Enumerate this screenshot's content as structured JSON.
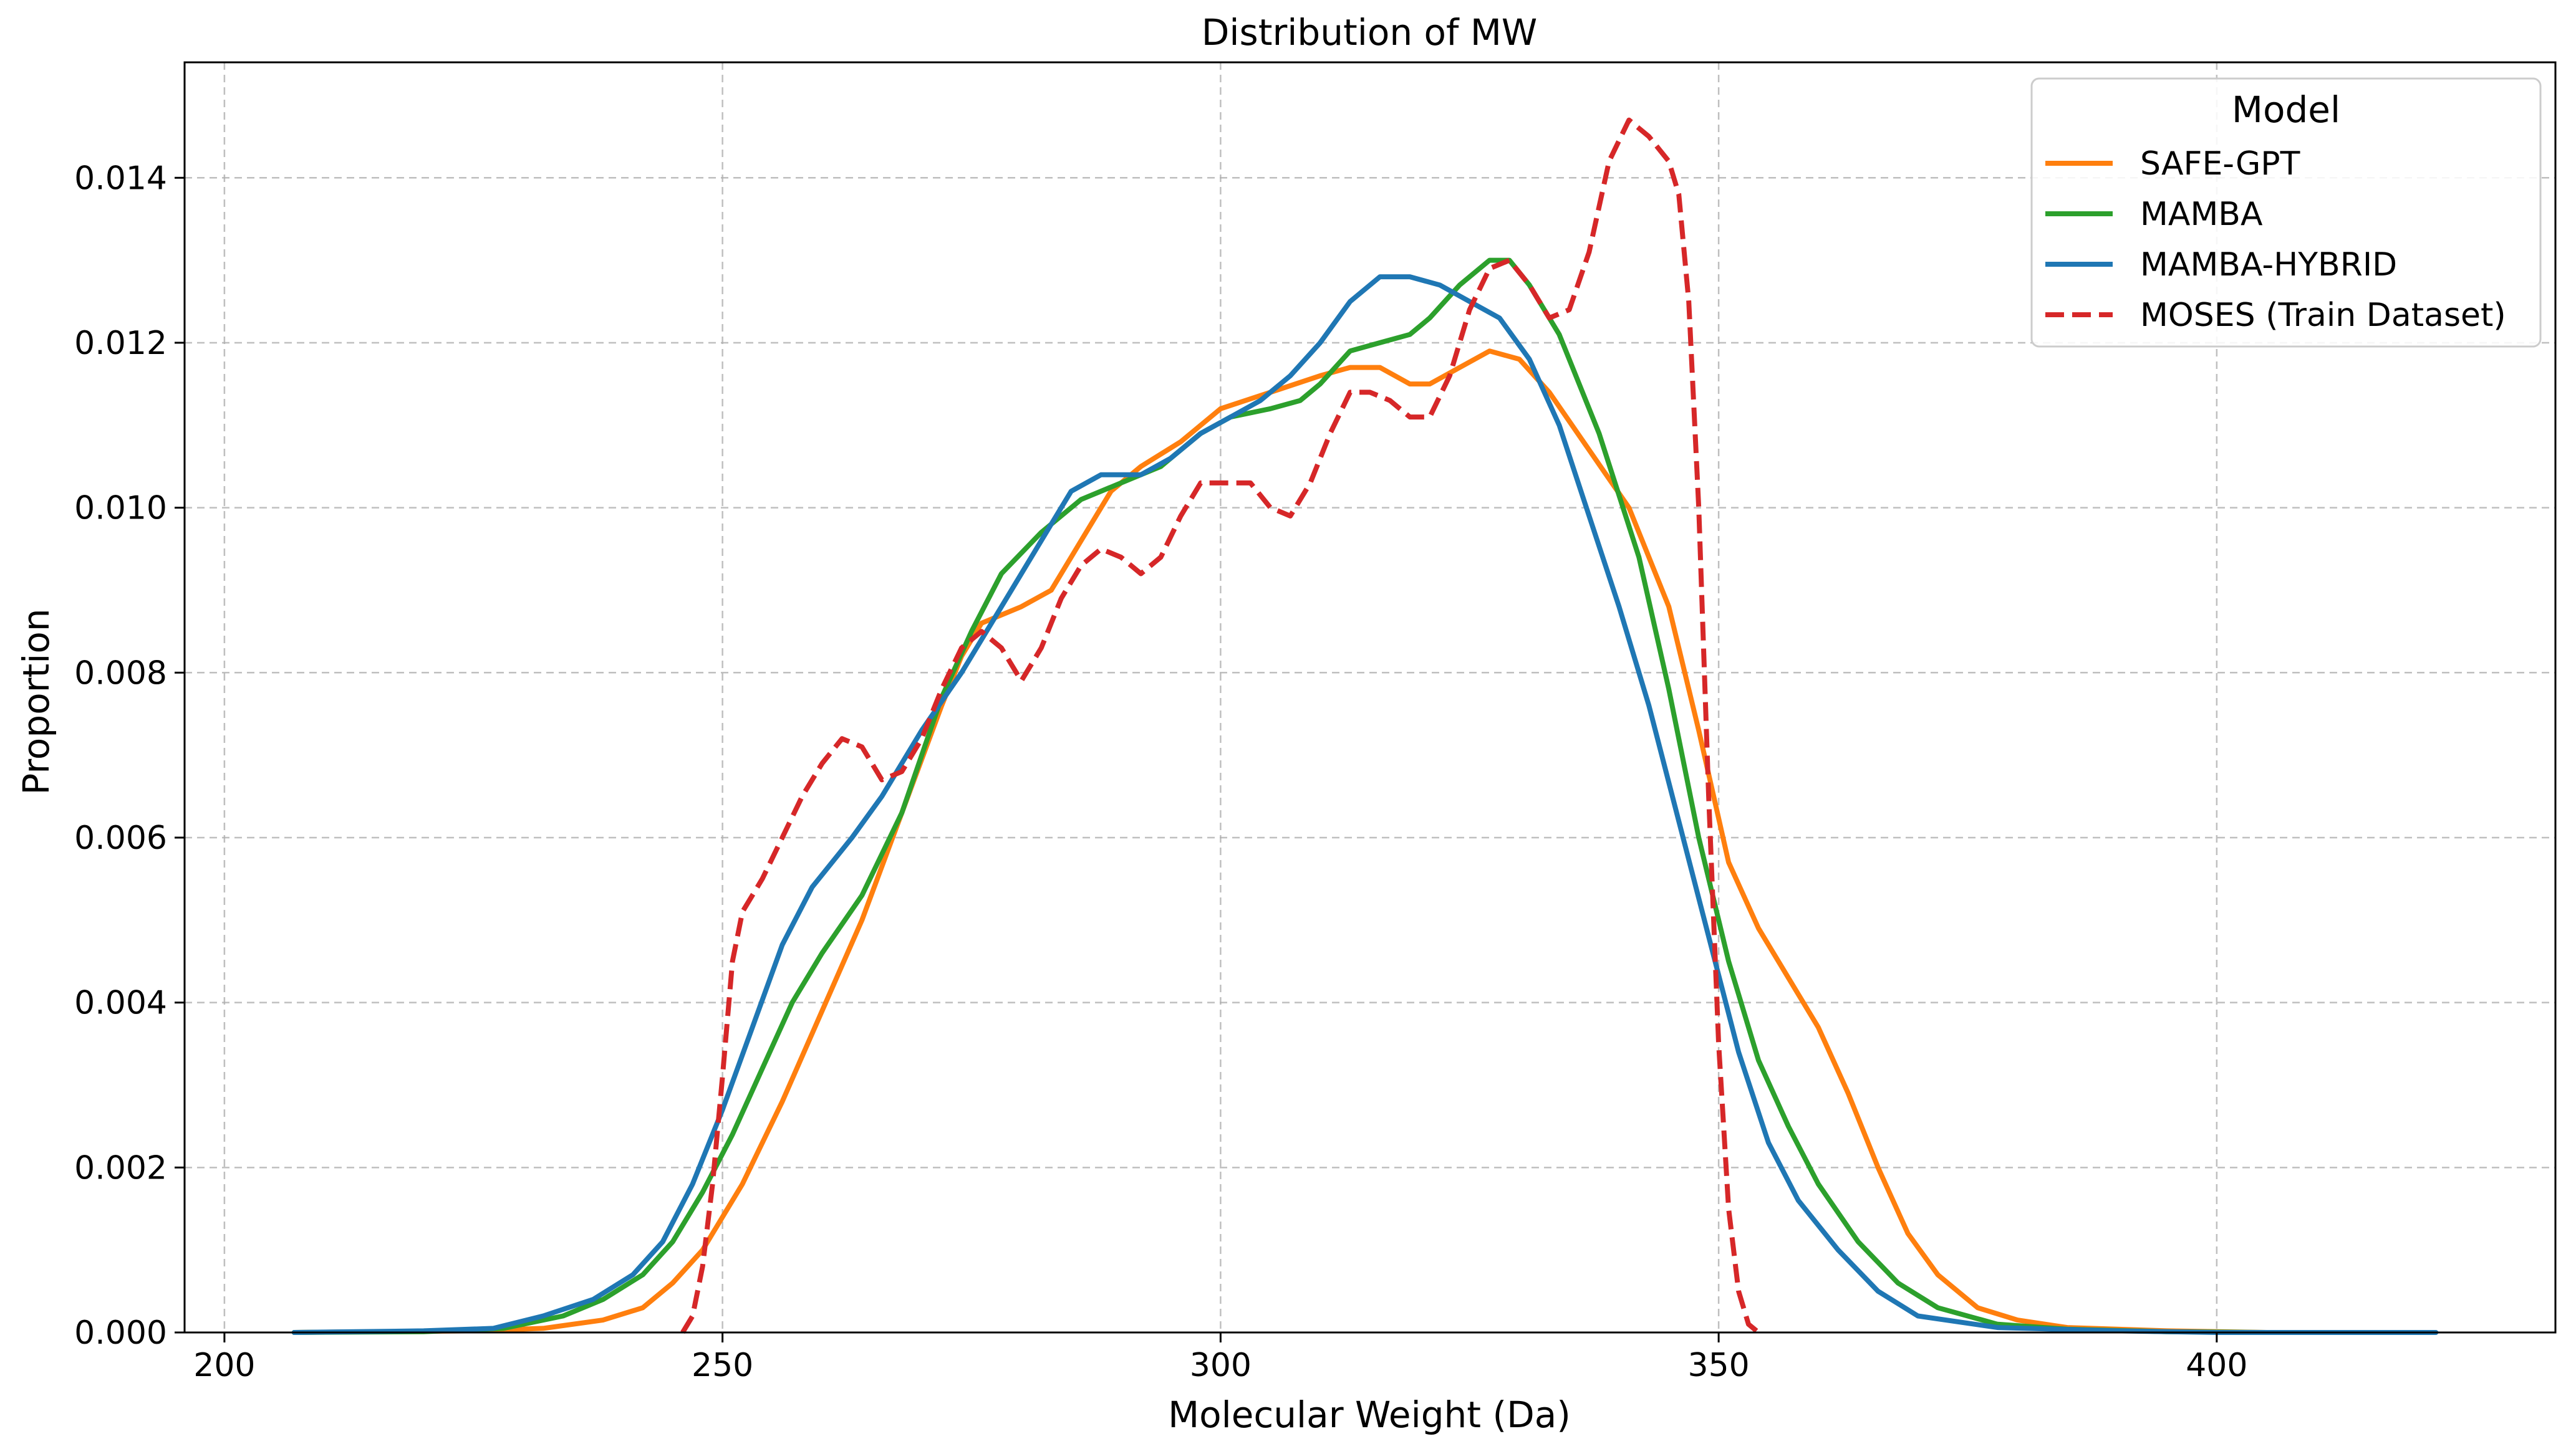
{
  "chart_data": {
    "type": "line",
    "title": "Distribution of MW",
    "xlabel": "Molecular Weight (Da)",
    "ylabel": "Proportion",
    "xlim": [
      196,
      434
    ],
    "ylim": [
      0,
      0.0154
    ],
    "xticks": [
      200,
      250,
      300,
      350,
      400
    ],
    "yticks": [
      0.0,
      0.002,
      0.004,
      0.006,
      0.008,
      0.01,
      0.012,
      0.014
    ],
    "xtick_labels": [
      "200",
      "250",
      "300",
      "350",
      "400"
    ],
    "ytick_labels": [
      "0.000",
      "0.002",
      "0.004",
      "0.006",
      "0.008",
      "0.010",
      "0.012",
      "0.014"
    ],
    "grid": true,
    "legend": {
      "title": "Model",
      "position": "top-right"
    },
    "series": [
      {
        "name": "SAFE-GPT",
        "color": "#ff7f0e",
        "dash": "solid",
        "points": [
          [
            207,
            0
          ],
          [
            225,
            2e-05
          ],
          [
            232,
            5e-05
          ],
          [
            238,
            0.00015
          ],
          [
            242,
            0.0003
          ],
          [
            245,
            0.0006
          ],
          [
            248,
            0.001
          ],
          [
            252,
            0.0018
          ],
          [
            256,
            0.0028
          ],
          [
            260,
            0.0039
          ],
          [
            264,
            0.005
          ],
          [
            268,
            0.0063
          ],
          [
            272,
            0.0076
          ],
          [
            274,
            0.0082
          ],
          [
            276,
            0.0086
          ],
          [
            280,
            0.0088
          ],
          [
            283,
            0.009
          ],
          [
            286,
            0.0096
          ],
          [
            289,
            0.0102
          ],
          [
            292,
            0.0105
          ],
          [
            296,
            0.0108
          ],
          [
            300,
            0.0112
          ],
          [
            305,
            0.0114
          ],
          [
            310,
            0.0116
          ],
          [
            313,
            0.0117
          ],
          [
            316,
            0.0117
          ],
          [
            319,
            0.0115
          ],
          [
            321,
            0.0115
          ],
          [
            324,
            0.0117
          ],
          [
            327,
            0.0119
          ],
          [
            330,
            0.0118
          ],
          [
            333,
            0.0114
          ],
          [
            337,
            0.0107
          ],
          [
            341,
            0.01
          ],
          [
            345,
            0.0088
          ],
          [
            348,
            0.0073
          ],
          [
            351,
            0.0057
          ],
          [
            354,
            0.0049
          ],
          [
            357,
            0.0043
          ],
          [
            360,
            0.0037
          ],
          [
            363,
            0.0029
          ],
          [
            366,
            0.002
          ],
          [
            369,
            0.0012
          ],
          [
            372,
            0.0007
          ],
          [
            376,
            0.0003
          ],
          [
            380,
            0.00015
          ],
          [
            385,
            6e-05
          ],
          [
            395,
            2e-05
          ],
          [
            405,
            0
          ]
        ]
      },
      {
        "name": "MAMBA",
        "color": "#2ca02c",
        "dash": "solid",
        "points": [
          [
            207,
            0
          ],
          [
            220,
            1e-05
          ],
          [
            228,
            5e-05
          ],
          [
            234,
            0.0002
          ],
          [
            238,
            0.0004
          ],
          [
            242,
            0.0007
          ],
          [
            245,
            0.0011
          ],
          [
            248,
            0.0017
          ],
          [
            251,
            0.0024
          ],
          [
            254,
            0.0032
          ],
          [
            257,
            0.004
          ],
          [
            260,
            0.0046
          ],
          [
            264,
            0.0053
          ],
          [
            268,
            0.0063
          ],
          [
            272,
            0.0077
          ],
          [
            275,
            0.0085
          ],
          [
            278,
            0.0092
          ],
          [
            282,
            0.0097
          ],
          [
            286,
            0.0101
          ],
          [
            290,
            0.0103
          ],
          [
            294,
            0.0105
          ],
          [
            298,
            0.0109
          ],
          [
            301,
            0.0111
          ],
          [
            305,
            0.0112
          ],
          [
            308,
            0.0113
          ],
          [
            310,
            0.0115
          ],
          [
            313,
            0.0119
          ],
          [
            316,
            0.012
          ],
          [
            319,
            0.0121
          ],
          [
            321,
            0.0123
          ],
          [
            324,
            0.0127
          ],
          [
            327,
            0.013
          ],
          [
            329,
            0.013
          ],
          [
            331,
            0.0127
          ],
          [
            334,
            0.0121
          ],
          [
            338,
            0.0109
          ],
          [
            342,
            0.0094
          ],
          [
            345,
            0.0078
          ],
          [
            348,
            0.006
          ],
          [
            351,
            0.0045
          ],
          [
            354,
            0.0033
          ],
          [
            357,
            0.0025
          ],
          [
            360,
            0.0018
          ],
          [
            364,
            0.0011
          ],
          [
            368,
            0.0006
          ],
          [
            372,
            0.0003
          ],
          [
            378,
            0.0001
          ],
          [
            385,
            4e-05
          ],
          [
            395,
            1e-05
          ],
          [
            405,
            0
          ]
        ]
      },
      {
        "name": "MAMBA-HYBRID",
        "color": "#1f77b4",
        "dash": "solid",
        "points": [
          [
            207,
            0
          ],
          [
            220,
            2e-05
          ],
          [
            227,
            5e-05
          ],
          [
            232,
            0.0002
          ],
          [
            237,
            0.0004
          ],
          [
            241,
            0.0007
          ],
          [
            244,
            0.0011
          ],
          [
            247,
            0.0018
          ],
          [
            250,
            0.0027
          ],
          [
            253,
            0.0037
          ],
          [
            256,
            0.0047
          ],
          [
            259,
            0.0054
          ],
          [
            263,
            0.006
          ],
          [
            266,
            0.0065
          ],
          [
            270,
            0.0073
          ],
          [
            274,
            0.008
          ],
          [
            277,
            0.0086
          ],
          [
            280,
            0.0092
          ],
          [
            283,
            0.0098
          ],
          [
            285,
            0.0102
          ],
          [
            288,
            0.0104
          ],
          [
            292,
            0.0104
          ],
          [
            295,
            0.0106
          ],
          [
            298,
            0.0109
          ],
          [
            301,
            0.0111
          ],
          [
            304,
            0.0113
          ],
          [
            307,
            0.0116
          ],
          [
            310,
            0.012
          ],
          [
            313,
            0.0125
          ],
          [
            316,
            0.0128
          ],
          [
            319,
            0.0128
          ],
          [
            322,
            0.0127
          ],
          [
            325,
            0.0125
          ],
          [
            328,
            0.0123
          ],
          [
            331,
            0.0118
          ],
          [
            334,
            0.011
          ],
          [
            337,
            0.0099
          ],
          [
            340,
            0.0088
          ],
          [
            343,
            0.0076
          ],
          [
            346,
            0.0062
          ],
          [
            349,
            0.0048
          ],
          [
            352,
            0.0034
          ],
          [
            355,
            0.0023
          ],
          [
            358,
            0.0016
          ],
          [
            362,
            0.001
          ],
          [
            366,
            0.0005
          ],
          [
            370,
            0.0002
          ],
          [
            378,
            6e-05
          ],
          [
            390,
            2e-05
          ],
          [
            400,
            0
          ],
          [
            422,
            0
          ]
        ]
      },
      {
        "name": "MOSES (Train Dataset)",
        "color": "#d62728",
        "dash": "dashed",
        "points": [
          [
            246,
            0
          ],
          [
            247,
            0.0002
          ],
          [
            248,
            0.0008
          ],
          [
            249,
            0.0018
          ],
          [
            250,
            0.0031
          ],
          [
            251,
            0.0045
          ],
          [
            252,
            0.0051
          ],
          [
            254,
            0.0055
          ],
          [
            256,
            0.006
          ],
          [
            258,
            0.0065
          ],
          [
            260,
            0.0069
          ],
          [
            262,
            0.0072
          ],
          [
            264,
            0.0071
          ],
          [
            266,
            0.0067
          ],
          [
            268,
            0.0068
          ],
          [
            270,
            0.0072
          ],
          [
            272,
            0.0078
          ],
          [
            274,
            0.0083
          ],
          [
            276,
            0.0085
          ],
          [
            278,
            0.0083
          ],
          [
            280,
            0.0079
          ],
          [
            282,
            0.0083
          ],
          [
            284,
            0.0089
          ],
          [
            286,
            0.0093
          ],
          [
            288,
            0.0095
          ],
          [
            290,
            0.0094
          ],
          [
            292,
            0.0092
          ],
          [
            294,
            0.0094
          ],
          [
            296,
            0.0099
          ],
          [
            298,
            0.0103
          ],
          [
            300,
            0.0103
          ],
          [
            303,
            0.0103
          ],
          [
            305,
            0.01
          ],
          [
            307,
            0.0099
          ],
          [
            309,
            0.0103
          ],
          [
            311,
            0.0109
          ],
          [
            313,
            0.0114
          ],
          [
            315,
            0.0114
          ],
          [
            317,
            0.0113
          ],
          [
            319,
            0.0111
          ],
          [
            321,
            0.0111
          ],
          [
            323,
            0.0116
          ],
          [
            325,
            0.0124
          ],
          [
            327,
            0.0129
          ],
          [
            329,
            0.013
          ],
          [
            331,
            0.0127
          ],
          [
            333,
            0.0123
          ],
          [
            335,
            0.0124
          ],
          [
            337,
            0.0131
          ],
          [
            339,
            0.0142
          ],
          [
            341,
            0.0147
          ],
          [
            343,
            0.0145
          ],
          [
            345,
            0.0142
          ],
          [
            346,
            0.0138
          ],
          [
            347,
            0.0125
          ],
          [
            348,
            0.01
          ],
          [
            349,
            0.0065
          ],
          [
            350,
            0.0035
          ],
          [
            351,
            0.0015
          ],
          [
            352,
            0.0005
          ],
          [
            353,
            0.0001
          ],
          [
            354,
            0
          ]
        ]
      }
    ]
  }
}
